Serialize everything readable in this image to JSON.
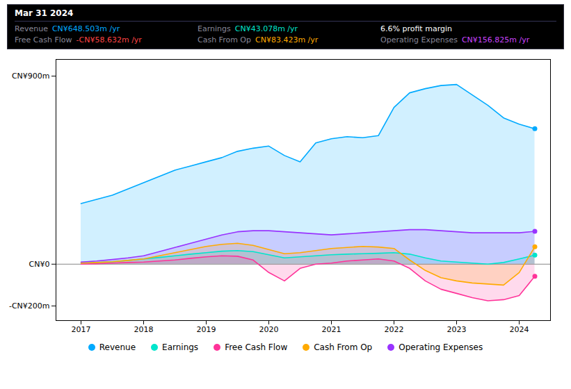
{
  "chart_data": {
    "type": "area",
    "stacked": false,
    "title": "Mar 31 2024",
    "x": [
      2017.0,
      2017.25,
      2017.5,
      2017.75,
      2018.0,
      2018.25,
      2018.5,
      2018.75,
      2019.0,
      2019.25,
      2019.5,
      2019.75,
      2020.0,
      2020.25,
      2020.5,
      2020.75,
      2021.0,
      2021.25,
      2021.5,
      2021.75,
      2022.0,
      2022.25,
      2022.5,
      2022.75,
      2023.0,
      2023.25,
      2023.5,
      2023.75,
      2024.0,
      2024.25
    ],
    "series": [
      {
        "name": "Revenue",
        "color": "#00aaff",
        "values": [
          290,
          310,
          330,
          360,
          390,
          420,
          450,
          470,
          490,
          510,
          540,
          555,
          565,
          520,
          490,
          580,
          600,
          610,
          605,
          615,
          750,
          820,
          840,
          855,
          860,
          810,
          760,
          700,
          670,
          648
        ]
      },
      {
        "name": "Earnings",
        "color": "#00e5cc",
        "values": [
          5,
          8,
          12,
          18,
          25,
          32,
          40,
          48,
          55,
          62,
          65,
          60,
          45,
          30,
          35,
          40,
          45,
          48,
          50,
          52,
          55,
          48,
          30,
          15,
          10,
          5,
          0,
          8,
          25,
          43
        ]
      },
      {
        "name": "Free Cash Flow",
        "color": "#ff3399",
        "values": [
          0,
          2,
          5,
          8,
          10,
          15,
          20,
          28,
          35,
          40,
          38,
          20,
          -40,
          -80,
          -20,
          0,
          5,
          15,
          20,
          25,
          15,
          -20,
          -80,
          -120,
          -140,
          -160,
          -175,
          -170,
          -150,
          -58
        ]
      },
      {
        "name": "Cash From Op",
        "color": "#ffaa00",
        "values": [
          5,
          8,
          12,
          18,
          25,
          40,
          55,
          70,
          85,
          95,
          100,
          90,
          70,
          50,
          55,
          65,
          75,
          80,
          85,
          82,
          75,
          20,
          -30,
          -65,
          -80,
          -90,
          -95,
          -100,
          -40,
          83
        ]
      },
      {
        "name": "Operating Expenses",
        "color": "#9933ff",
        "values": [
          10,
          15,
          22,
          30,
          40,
          60,
          80,
          100,
          120,
          140,
          155,
          160,
          160,
          155,
          150,
          145,
          140,
          145,
          150,
          155,
          160,
          165,
          165,
          160,
          155,
          150,
          150,
          150,
          150,
          157
        ]
      }
    ],
    "xlim": [
      2016.6,
      2024.5
    ],
    "xticks": [
      2017,
      2018,
      2019,
      2020,
      2021,
      2022,
      2023,
      2024
    ],
    "ylim": [
      -270,
      980
    ],
    "yticks": [
      {
        "value": 900,
        "label": "CN¥900m"
      },
      {
        "value": 0,
        "label": "CN¥0"
      },
      {
        "value": -200,
        "label": "-CN¥200m"
      }
    ],
    "legend": "bottom",
    "annotations": [
      {
        "label": "Revenue",
        "text": "CN¥648.503m /yr",
        "color": "#00aaff"
      },
      {
        "label": "Earnings",
        "text": "CN¥43.078m /yr",
        "color": "#00e5cc"
      },
      {
        "text": "6.6% profit margin",
        "color": "#ffffff"
      },
      {
        "label": "Free Cash Flow",
        "text": "-CN¥58.632m /yr",
        "color": "#ff4444"
      },
      {
        "label": "Cash From Op",
        "text": "CN¥83.423m /yr",
        "color": "#ffaa00"
      },
      {
        "label": "Operating Expenses",
        "text": "CN¥156.825m /yr",
        "color": "#cc44ff"
      }
    ]
  }
}
